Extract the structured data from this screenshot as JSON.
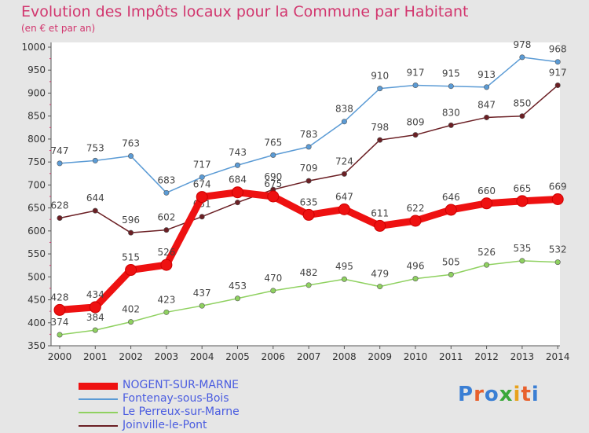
{
  "chart_data": {
    "type": "line",
    "title": "Evolution des Impôts locaux pour la Commune par Habitant",
    "subtitle": "(en € et par an)",
    "x": [
      "2000",
      "2001",
      "2002",
      "2003",
      "2004",
      "2005",
      "2006",
      "2007",
      "2008",
      "2009",
      "2010",
      "2011",
      "2012",
      "2013",
      "2014"
    ],
    "ylim": [
      350,
      1000
    ],
    "yticks": [
      350,
      400,
      450,
      500,
      550,
      600,
      650,
      700,
      750,
      800,
      850,
      900,
      950,
      1000
    ],
    "grid": false,
    "legend_position": "bottom-left",
    "series": [
      {
        "name": "Fontenay-sous-Bois",
        "color": "#5b9bd5",
        "values": [
          747,
          753,
          763,
          683,
          717,
          743,
          765,
          783,
          838,
          910,
          917,
          915,
          913,
          978,
          968
        ]
      },
      {
        "name": "Joinville-le-Pont",
        "color": "#6b1f24",
        "values": [
          628,
          644,
          596,
          602,
          631,
          662,
          690,
          709,
          724,
          798,
          809,
          830,
          847,
          850,
          917
        ]
      },
      {
        "name": "Le Perreux-sur-Marne",
        "color": "#8fd160",
        "values": [
          374,
          384,
          402,
          423,
          437,
          453,
          470,
          482,
          495,
          479,
          496,
          505,
          526,
          535,
          532
        ]
      },
      {
        "name": "NOGENT-SUR-MARNE",
        "color": "#ee1111",
        "highlight": true,
        "values": [
          428,
          434,
          515,
          526,
          674,
          684,
          675,
          635,
          647,
          611,
          622,
          646,
          660,
          665,
          669
        ]
      }
    ],
    "data_labels": {
      "Fontenay-sous-Bois": [
        "747",
        "753",
        "763",
        "683",
        "717",
        "743",
        "765",
        "783",
        "838",
        "910",
        "917",
        "915",
        "913",
        "978",
        "968"
      ],
      "Joinville-le-Pont": [
        "628",
        "644",
        "596",
        "602",
        "631",
        "",
        "690",
        "709",
        "724",
        "798",
        "809",
        "830",
        "847",
        "850",
        "917"
      ],
      "Le Perreux-sur-Marne": [
        "374",
        "384",
        "402",
        "423",
        "437",
        "453",
        "470",
        "482",
        "495",
        "479",
        "496",
        "505",
        "526",
        "535",
        "532"
      ],
      "NOGENT-SUR-MARNE": [
        "428",
        "434",
        "515",
        "526",
        "674",
        "684",
        "675",
        "635",
        "647",
        "611",
        "622",
        "646",
        "660",
        "665",
        "669"
      ]
    },
    "legend": [
      "NOGENT-SUR-MARNE",
      "Fontenay-sous-Bois",
      "Le Perreux-sur-Marne",
      "Joinville-le-Pont"
    ]
  },
  "legend_colors": {
    "NOGENT-SUR-MARNE": "#ee1111",
    "Fontenay-sous-Bois": "#5b9bd5",
    "Le Perreux-sur-Marne": "#8fd160",
    "Joinville-le-Pont": "#6b1f24"
  },
  "logo": {
    "text": "Proxiti",
    "letter_colors": [
      "#3b7fd4",
      "#e8602c",
      "#3b7fd4",
      "#3aa83a",
      "#e8a21c",
      "#e8602c",
      "#3b7fd4"
    ]
  }
}
